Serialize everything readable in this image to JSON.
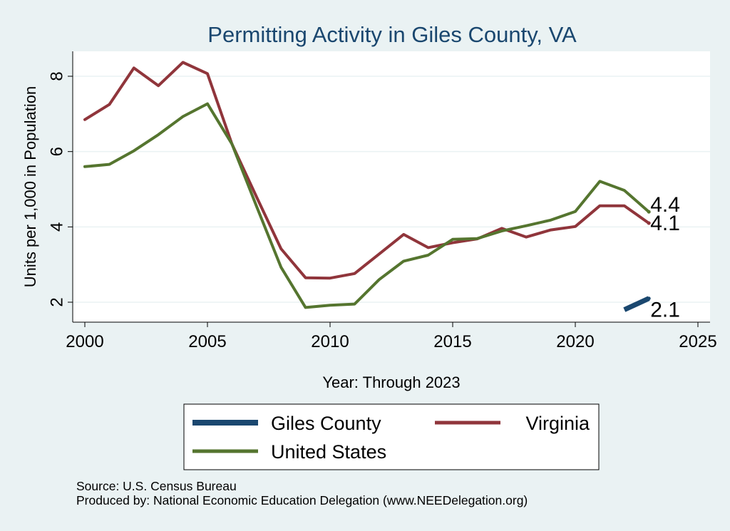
{
  "chart_data": {
    "type": "line",
    "title": "Permitting Activity in Giles County, VA",
    "xlabel": "Year: Through 2023",
    "ylabel": "Units per 1,000 in Population",
    "xlim": [
      2000,
      2025
    ],
    "ylim": [
      1.5,
      8.7
    ],
    "xticks": [
      2000,
      2005,
      2010,
      2015,
      2020,
      2025
    ],
    "yticks": [
      2,
      4,
      6,
      8
    ],
    "grid": true,
    "legend_position": "bottom",
    "series": [
      {
        "name": "Giles County",
        "color": "#1a476f",
        "x": [
          2022,
          2023
        ],
        "values": [
          1.8,
          2.1
        ],
        "end_label": "2.1"
      },
      {
        "name": "Virginia",
        "color": "#90353b",
        "x": [
          2000,
          2001,
          2002,
          2003,
          2004,
          2005,
          2006,
          2007,
          2008,
          2009,
          2010,
          2011,
          2012,
          2013,
          2014,
          2015,
          2016,
          2017,
          2018,
          2019,
          2020,
          2021,
          2022,
          2023
        ],
        "values": [
          6.85,
          7.25,
          8.22,
          7.75,
          8.37,
          8.07,
          6.2,
          4.8,
          3.42,
          2.65,
          2.64,
          2.76,
          3.28,
          3.8,
          3.45,
          3.58,
          3.68,
          3.96,
          3.73,
          3.92,
          4.01,
          4.56,
          4.56,
          4.1
        ],
        "end_label": "4.1"
      },
      {
        "name": "United States",
        "color": "#55752f",
        "x": [
          2000,
          2001,
          2002,
          2003,
          2004,
          2005,
          2006,
          2007,
          2008,
          2009,
          2010,
          2011,
          2012,
          2013,
          2014,
          2015,
          2016,
          2017,
          2018,
          2019,
          2020,
          2021,
          2022,
          2023
        ],
        "values": [
          5.6,
          5.66,
          6.02,
          6.45,
          6.93,
          7.27,
          6.2,
          4.55,
          2.93,
          1.86,
          1.92,
          1.95,
          2.6,
          3.09,
          3.25,
          3.67,
          3.69,
          3.89,
          4.03,
          4.18,
          4.41,
          5.21,
          4.97,
          4.4
        ],
        "end_label": "4.4"
      }
    ]
  },
  "notes": {
    "source": "Source: U.S. Census Bureau",
    "producer": "Produced by: National Economic Education Delegation (www.NEEDelegation.org)"
  }
}
